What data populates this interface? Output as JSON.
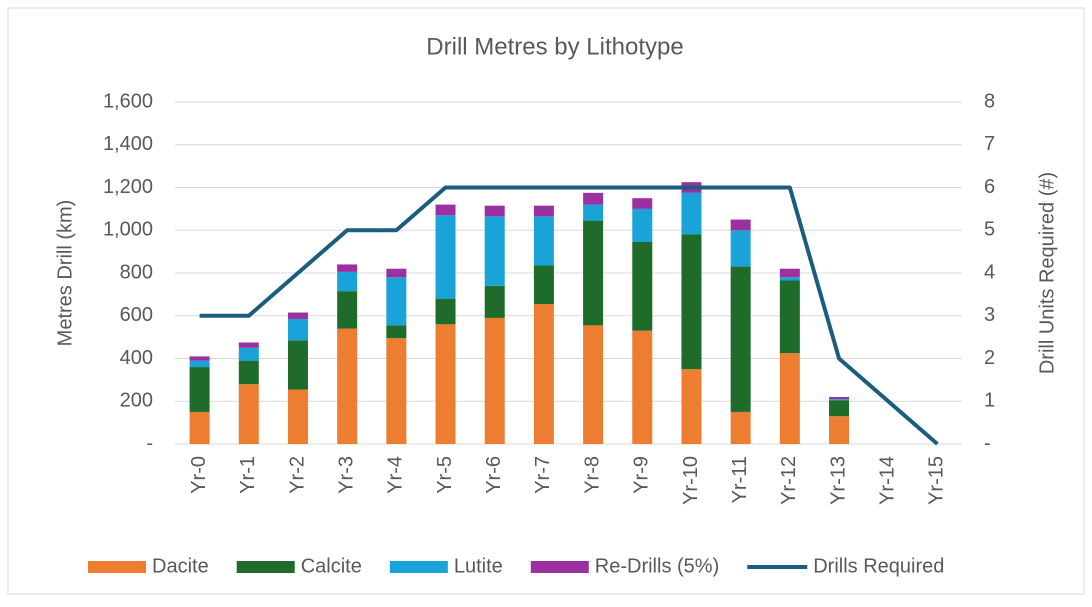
{
  "chart_data": {
    "type": "bar",
    "title": "Drill Metres by Lithotype",
    "y_label": "Metres Drill (km)",
    "y2_label": "Drill Units Required (#)",
    "categories": [
      "Yr-0",
      "Yr-1",
      "Yr-2",
      "Yr-3",
      "Yr-4",
      "Yr-5",
      "Yr-6",
      "Yr-7",
      "Yr-8",
      "Yr-9",
      "Yr-10",
      "Yr-11",
      "Yr-12",
      "Yr-13",
      "Yr-14",
      "Yr-15"
    ],
    "stacked": true,
    "grid": true,
    "legend": "bottom",
    "series": [
      {
        "name": "Dacite",
        "color": "#ed7d31",
        "values": [
          150,
          280,
          255,
          540,
          495,
          560,
          590,
          655,
          555,
          530,
          350,
          150,
          425,
          130,
          0,
          0
        ]
      },
      {
        "name": "Calcite",
        "color": "#1e6b2a",
        "values": [
          210,
          110,
          230,
          175,
          60,
          120,
          150,
          180,
          490,
          415,
          630,
          680,
          340,
          75,
          0,
          0
        ]
      },
      {
        "name": "Lutite",
        "color": "#1aa3d9",
        "values": [
          30,
          60,
          100,
          90,
          225,
          390,
          325,
          230,
          75,
          155,
          195,
          170,
          15,
          5,
          0,
          0
        ]
      },
      {
        "name": "Re-Drills (5%)",
        "color": "#9b30a0",
        "values": [
          20,
          25,
          30,
          35,
          40,
          50,
          50,
          50,
          55,
          50,
          50,
          50,
          40,
          10,
          0,
          0
        ]
      },
      {
        "name": "Drills Required",
        "color": "#1b5d7e",
        "type": "line",
        "axis": "y2",
        "values": [
          3,
          3,
          4,
          5,
          5,
          6,
          6,
          6,
          6,
          6,
          6,
          6,
          6,
          2,
          1,
          0
        ]
      }
    ],
    "ylim": [
      0,
      1600
    ],
    "yticks": [
      {
        "value": 0,
        "label": "-"
      },
      200,
      400,
      600,
      800,
      {
        "value": 1000,
        "label": "1,000"
      },
      {
        "value": 1200,
        "label": "1,200"
      },
      {
        "value": 1400,
        "label": "1,400"
      },
      {
        "value": 1600,
        "label": "1,600"
      }
    ],
    "y2lim": [
      0,
      8
    ],
    "y2ticks": [
      {
        "value": 0,
        "label": "-"
      },
      1,
      2,
      3,
      4,
      5,
      6,
      7,
      8
    ]
  }
}
